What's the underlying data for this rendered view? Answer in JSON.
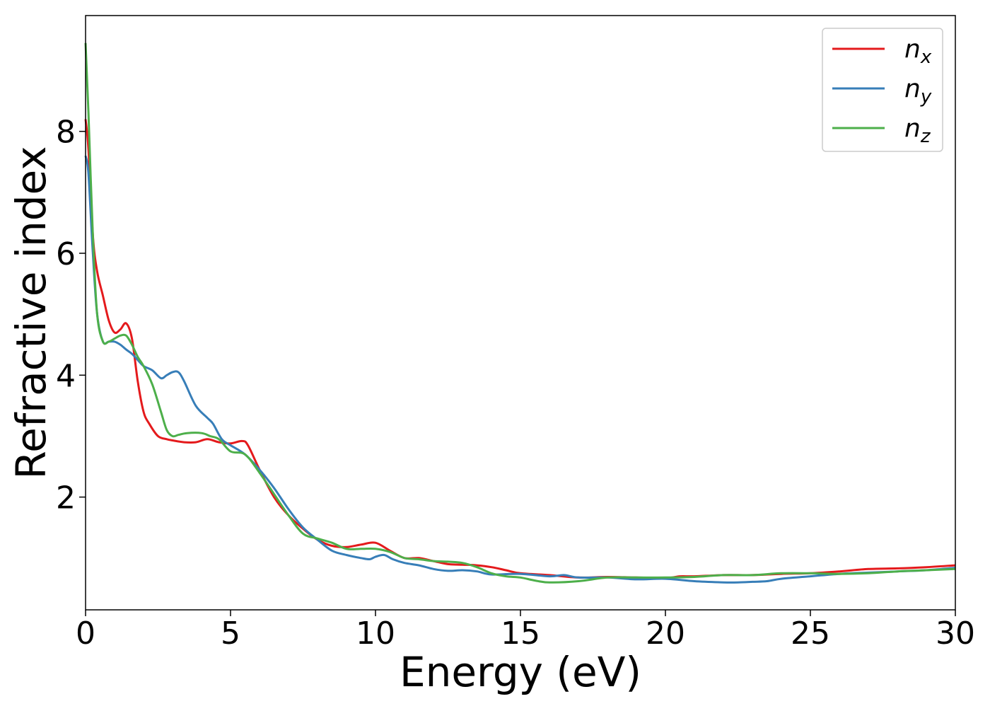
{
  "chart_data": {
    "type": "line",
    "xlabel": "Energy (eV)",
    "ylabel": "Refractive index",
    "xlim": [
      0,
      30
    ],
    "ylim": [
      0.15,
      9.9
    ],
    "xticks": [
      0,
      5,
      10,
      15,
      20,
      25,
      30
    ],
    "yticks": [
      2,
      4,
      6,
      8
    ],
    "grid": false,
    "legend_position": "top-right",
    "series": [
      {
        "name": "n",
        "subscript": "x",
        "color": "#e41a1c",
        "x": [
          0,
          0.1,
          0.25,
          0.4,
          0.6,
          0.8,
          1.0,
          1.2,
          1.4,
          1.6,
          1.8,
          2.0,
          2.2,
          2.5,
          2.8,
          3.0,
          3.4,
          3.8,
          4.2,
          4.6,
          5.0,
          5.4,
          5.6,
          6.0,
          6.5,
          7.0,
          7.5,
          8.0,
          8.5,
          9.0,
          9.5,
          10.0,
          10.5,
          11.0,
          11.5,
          12.0,
          12.5,
          13.0,
          13.5,
          14.0,
          14.5,
          15.0,
          16.0,
          17.0,
          18.0,
          19.0,
          20.0,
          20.5,
          21.0,
          22.0,
          23.0,
          24.0,
          25.0,
          26.0,
          27.0,
          28.0,
          29.0,
          30.0
        ],
        "values": [
          8.2,
          7.7,
          6.3,
          5.7,
          5.3,
          4.9,
          4.7,
          4.75,
          4.85,
          4.6,
          3.9,
          3.4,
          3.2,
          3.0,
          2.95,
          2.93,
          2.9,
          2.9,
          2.95,
          2.9,
          2.88,
          2.92,
          2.85,
          2.45,
          2.0,
          1.7,
          1.48,
          1.3,
          1.2,
          1.18,
          1.22,
          1.25,
          1.12,
          1.0,
          1.0,
          0.95,
          0.9,
          0.89,
          0.88,
          0.85,
          0.8,
          0.75,
          0.72,
          0.68,
          0.69,
          0.68,
          0.67,
          0.7,
          0.7,
          0.72,
          0.72,
          0.74,
          0.75,
          0.78,
          0.82,
          0.83,
          0.85,
          0.88
        ]
      },
      {
        "name": "n",
        "subscript": "y",
        "color": "#377eb8",
        "x": [
          0,
          0.1,
          0.25,
          0.4,
          0.6,
          0.8,
          1.0,
          1.2,
          1.4,
          1.6,
          1.8,
          2.0,
          2.3,
          2.6,
          2.8,
          3.0,
          3.2,
          3.4,
          3.8,
          4.2,
          4.4,
          4.7,
          5.0,
          5.5,
          6.0,
          6.5,
          7.0,
          7.5,
          8.0,
          8.5,
          9.0,
          9.5,
          9.8,
          10.0,
          10.3,
          10.6,
          11.0,
          11.5,
          12.0,
          12.5,
          13.0,
          13.5,
          14.0,
          15.0,
          16.0,
          16.5,
          17.0,
          18.0,
          19.0,
          20.0,
          21.0,
          22.0,
          22.5,
          23.0,
          23.5,
          24.0,
          25.0,
          26.0,
          27.0,
          28.0,
          29.0,
          30.0
        ],
        "values": [
          7.6,
          7.3,
          6.0,
          5.0,
          4.55,
          4.55,
          4.55,
          4.5,
          4.42,
          4.35,
          4.25,
          4.15,
          4.08,
          3.95,
          4.0,
          4.05,
          4.05,
          3.9,
          3.5,
          3.3,
          3.2,
          2.95,
          2.85,
          2.7,
          2.45,
          2.15,
          1.8,
          1.5,
          1.3,
          1.12,
          1.05,
          1.0,
          0.98,
          1.02,
          1.05,
          0.98,
          0.92,
          0.88,
          0.82,
          0.79,
          0.8,
          0.78,
          0.73,
          0.74,
          0.7,
          0.72,
          0.68,
          0.68,
          0.65,
          0.66,
          0.62,
          0.6,
          0.6,
          0.61,
          0.62,
          0.66,
          0.7,
          0.74,
          0.76,
          0.78,
          0.8,
          0.84
        ]
      },
      {
        "name": "n",
        "subscript": "z",
        "color": "#4daf4a",
        "x": [
          0,
          0.1,
          0.25,
          0.4,
          0.6,
          0.8,
          1.0,
          1.2,
          1.4,
          1.6,
          1.8,
          2.0,
          2.3,
          2.6,
          2.8,
          3.0,
          3.2,
          3.5,
          4.0,
          4.3,
          4.6,
          5.0,
          5.5,
          6.0,
          6.5,
          7.0,
          7.5,
          8.0,
          8.5,
          9.0,
          9.5,
          10.0,
          10.5,
          11.0,
          11.5,
          12.0,
          12.5,
          13.0,
          13.5,
          14.0,
          14.5,
          15.0,
          15.5,
          16.0,
          17.0,
          18.0,
          19.0,
          20.0,
          21.0,
          22.0,
          23.0,
          24.0,
          25.0,
          26.0,
          27.0,
          28.0,
          29.0,
          30.0
        ],
        "values": [
          9.45,
          8.3,
          6.3,
          5.0,
          4.55,
          4.55,
          4.6,
          4.65,
          4.65,
          4.5,
          4.3,
          4.15,
          3.85,
          3.4,
          3.1,
          3.0,
          3.02,
          3.05,
          3.05,
          3.0,
          2.95,
          2.75,
          2.7,
          2.4,
          2.05,
          1.7,
          1.4,
          1.32,
          1.25,
          1.15,
          1.15,
          1.15,
          1.1,
          1.0,
          0.98,
          0.95,
          0.94,
          0.92,
          0.85,
          0.75,
          0.7,
          0.68,
          0.63,
          0.6,
          0.62,
          0.68,
          0.68,
          0.68,
          0.69,
          0.72,
          0.72,
          0.75,
          0.75,
          0.74,
          0.75,
          0.78,
          0.8,
          0.82
        ]
      }
    ]
  }
}
